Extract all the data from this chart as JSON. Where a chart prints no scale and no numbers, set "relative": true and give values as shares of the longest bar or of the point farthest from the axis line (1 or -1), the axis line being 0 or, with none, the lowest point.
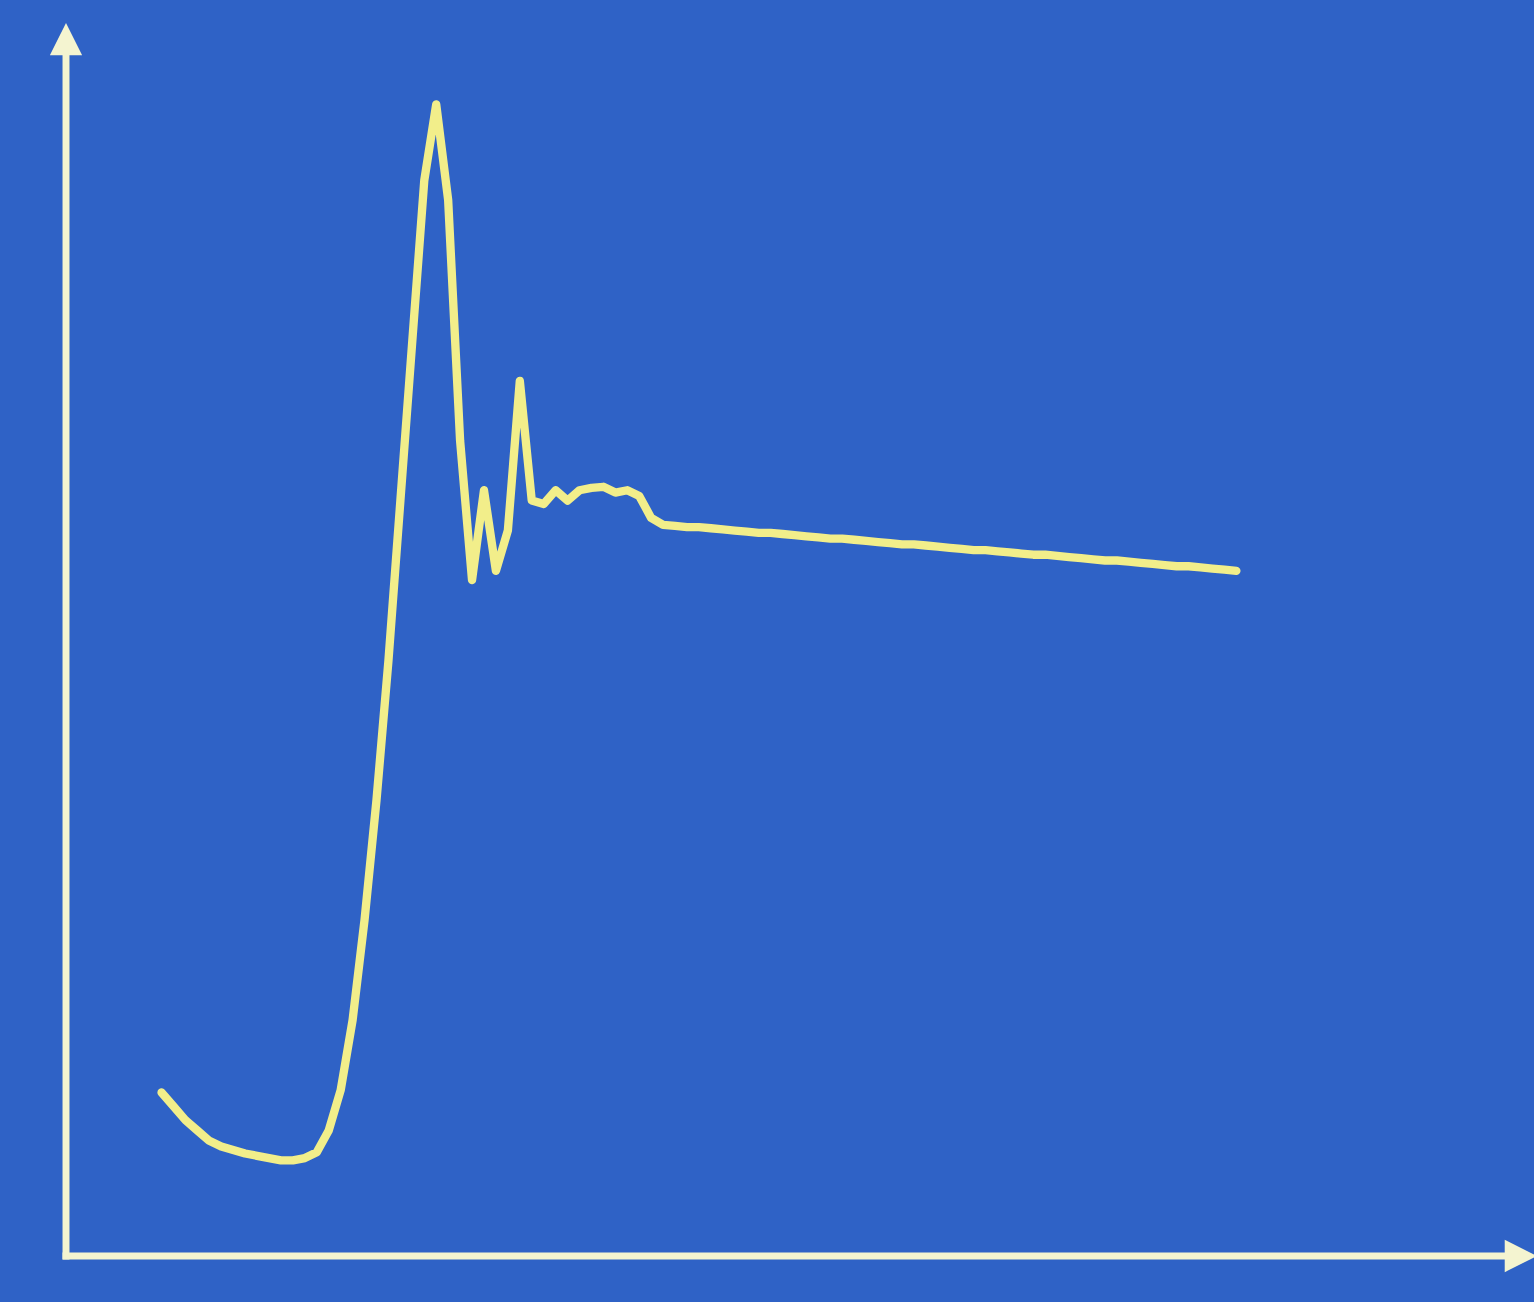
{
  "chart_data": {
    "type": "line",
    "relative": true,
    "color": "#f2ee8a",
    "categories": [
      null,
      null,
      null,
      null,
      null,
      null,
      null,
      null,
      null,
      null,
      null,
      null,
      null,
      null,
      null,
      null,
      null,
      null,
      null,
      null,
      null,
      null,
      null,
      null,
      null,
      null,
      null,
      null,
      null,
      null,
      null,
      null,
      null,
      null,
      null,
      null,
      null,
      null,
      null,
      null,
      null,
      null,
      null,
      null,
      null,
      null,
      null,
      null,
      null,
      null,
      null,
      null,
      null,
      null,
      null,
      null,
      null,
      null,
      null,
      null,
      null,
      null,
      null,
      null,
      null,
      null,
      null,
      null,
      null,
      null,
      null,
      null,
      null,
      null,
      null,
      null,
      null,
      null,
      null,
      null,
      null,
      null,
      null,
      null,
      null,
      null,
      null,
      null,
      null,
      null,
      null
    ],
    "values": [
      0.142,
      0.13,
      0.118,
      0.109,
      0.1,
      0.095,
      0.092,
      0.089,
      0.087,
      0.085,
      0.083,
      0.083,
      0.085,
      0.09,
      0.109,
      0.144,
      0.205,
      0.292,
      0.396,
      0.517,
      0.656,
      0.795,
      0.934,
      1.0,
      0.917,
      0.708,
      0.587,
      0.665,
      0.595,
      0.63,
      0.76,
      0.656,
      0.653,
      0.665,
      0.656,
      0.665,
      0.667,
      0.668,
      0.663,
      0.665,
      0.66,
      0.641,
      0.635,
      0.634,
      0.633,
      0.633,
      0.632,
      0.631,
      0.63,
      0.629,
      0.628,
      0.628,
      0.627,
      0.626,
      0.625,
      0.624,
      0.623,
      0.623,
      0.622,
      0.621,
      0.62,
      0.619,
      0.618,
      0.618,
      0.617,
      0.616,
      0.615,
      0.614,
      0.613,
      0.613,
      0.612,
      0.611,
      0.61,
      0.609,
      0.609,
      0.608,
      0.607,
      0.606,
      0.605,
      0.604,
      0.604,
      0.603,
      0.602,
      0.601,
      0.6,
      0.599,
      0.599,
      0.598,
      0.597,
      0.596,
      0.595
    ],
    "grid": false,
    "legend": false,
    "marker": "none",
    "line_style": "solid"
  }
}
